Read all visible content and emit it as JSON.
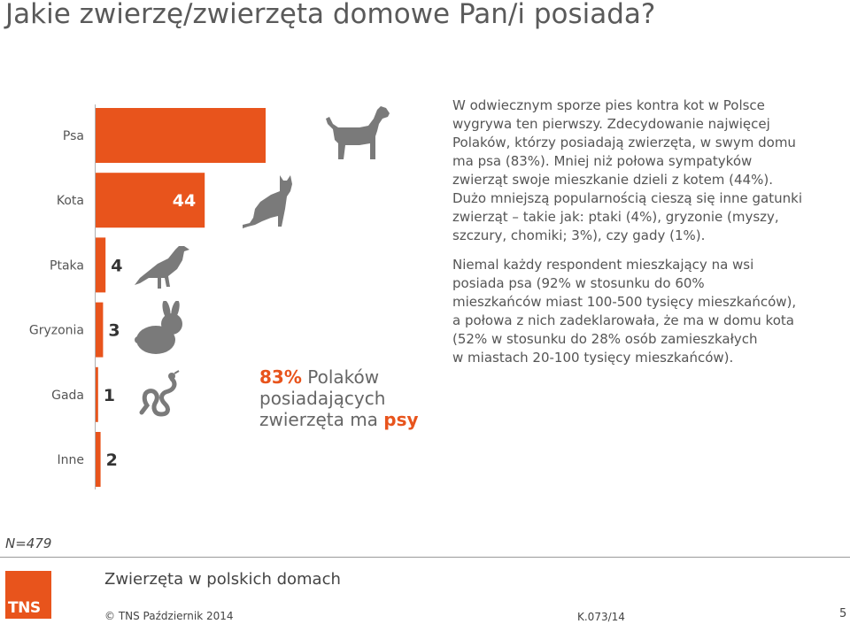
{
  "title": "Jakie zwierzę/zwierzęta domowe Pan/i posiada?",
  "chart_data": {
    "type": "bar",
    "orientation": "horizontal",
    "categories": [
      "Psa",
      "Kota",
      "Ptaka",
      "Gryzonia",
      "Gada",
      "Inne"
    ],
    "values": [
      83,
      44,
      4,
      3,
      1,
      2
    ],
    "xlim": [
      0,
      100
    ],
    "bar_color": "#e8541c",
    "grid": false
  },
  "icons": [
    "dog-icon",
    "cat-icon",
    "bird-icon",
    "rabbit-icon",
    "snake-icon"
  ],
  "paragraph1": [
    "W odwiecznym sporze pies kontra kot w Polsce",
    "wygrywa ten pierwszy. Zdecydowanie najwięcej",
    "Polaków, którzy posiadają zwierzęta, w swym domu",
    "ma psa (83%). Mniej niż połowa sympatyków",
    "zwierząt swoje mieszkanie dzieli z kotem (44%).",
    "Dużo mniejszą popularnością cieszą się inne gatunki",
    "zwierząt – takie jak: ptaki (4%), gryzonie (myszy,",
    "szczury, chomiki; 3%), czy gady (1%)."
  ],
  "paragraph2": [
    "Niemal każdy respondent mieszkający na wsi",
    "posiada psa (92% w stosunku do 60%",
    "mieszkańców miast 100-500 tysięcy mieszkańców),",
    "a połowa z nich zadeklarowała, że ma w domu kota",
    "(52% w stosunku do 28% osób zamieszkałych",
    "w miastach 20-100 tysięcy mieszkańców)."
  ],
  "callout": {
    "value": "83%",
    "text1": " Polaków",
    "line2": "posiadających",
    "line3": "zwierzęta ma ",
    "emphasis": "psy"
  },
  "sample": "N=479",
  "footer": {
    "logo": "TNS",
    "subtitle": "Zwierzęta w polskich domach",
    "copyright": "© TNS Październik 2014",
    "code": "K.073/14",
    "page": "5"
  },
  "colors": {
    "accent": "#e8541c",
    "text": "#555555",
    "icon": "#7a7a7a"
  }
}
